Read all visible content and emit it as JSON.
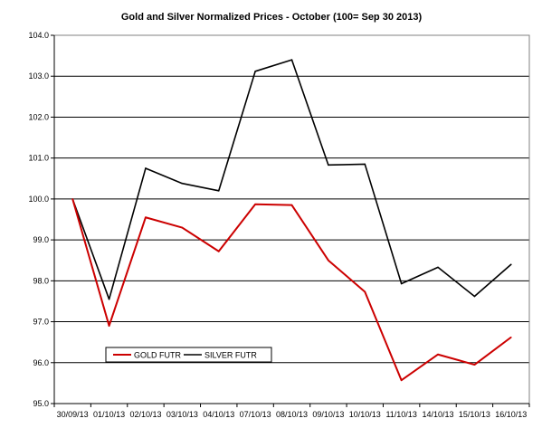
{
  "chart_data": {
    "type": "line",
    "title": "Gold and Silver Normalized Prices - October  (100= Sep 30 2013)",
    "xlabel": "",
    "ylabel": "",
    "categories": [
      "30/09/13",
      "01/10/13",
      "02/10/13",
      "03/10/13",
      "04/10/13",
      "07/10/13",
      "08/10/13",
      "09/10/13",
      "10/10/13",
      "11/10/13",
      "14/10/13",
      "15/10/13",
      "16/10/13"
    ],
    "ylim": [
      95.0,
      104.0
    ],
    "yticks": [
      "95.0",
      "96.0",
      "97.0",
      "98.0",
      "99.0",
      "100.0",
      "101.0",
      "102.0",
      "103.0",
      "104.0"
    ],
    "grid": true,
    "legend_position": "bottom-left",
    "series": [
      {
        "name": "GOLD  FUTR",
        "color": "#cc0000",
        "values": [
          100.0,
          96.9,
          99.55,
          99.3,
          98.72,
          99.87,
          99.85,
          98.5,
          97.73,
          95.57,
          96.2,
          95.95,
          96.62
        ]
      },
      {
        "name": "SILVER  FUTR",
        "color": "#000000",
        "values": [
          100.0,
          97.55,
          100.75,
          100.38,
          100.2,
          103.12,
          103.4,
          100.83,
          100.85,
          97.93,
          98.33,
          97.62,
          98.4
        ]
      }
    ]
  }
}
